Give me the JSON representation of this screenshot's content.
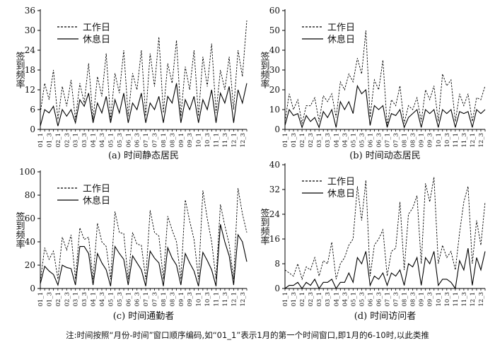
{
  "figure": {
    "note": "注:时间按照“月份-时间”窗口顺序编码,如“01_1”表示1月的第一个时间窗口,即1月的6-10时,以此类推"
  },
  "chart_data": [
    {
      "type": "line",
      "title": "(a) 时间静态居民",
      "ylabel": "签到频率",
      "xlabel": "",
      "ylim": [
        0,
        36
      ],
      "yticks": [
        0,
        6,
        12,
        18,
        24,
        30,
        36
      ],
      "x": [
        "01_1",
        "01_2",
        "01_3",
        "01_4",
        "02_1",
        "02_2",
        "02_3",
        "02_4",
        "03_1",
        "03_2",
        "03_3",
        "03_4",
        "04_1",
        "04_2",
        "04_3",
        "04_4",
        "05_1",
        "05_2",
        "05_3",
        "05_4",
        "06_1",
        "06_2",
        "06_3",
        "06_4",
        "07_1",
        "07_2",
        "07_3",
        "07_4",
        "08_1",
        "08_2",
        "08_3",
        "08_4",
        "09_1",
        "09_2",
        "09_3",
        "09_4",
        "10_1",
        "10_2",
        "10_3",
        "10_4",
        "11_1",
        "11_2",
        "11_3",
        "11_4",
        "12_1",
        "12_2",
        "12_3",
        "12_4"
      ],
      "xtick_labels": [
        "01_1",
        "01_3",
        "02_1",
        "02_3",
        "03_1",
        "03_3",
        "04_1",
        "04_3",
        "05_1",
        "05_3",
        "06_1",
        "06_3",
        "07_1",
        "07_3",
        "08_1",
        "08_3",
        "09_1",
        "09_3",
        "10_1",
        "10_3",
        "11_1",
        "11_3",
        "12_1",
        "12_3"
      ],
      "legend": "top-left",
      "series": [
        {
          "name": "工作日",
          "style": "dashed",
          "values": [
            5,
            14,
            9,
            18,
            3,
            13,
            7,
            15,
            3,
            14,
            8,
            20,
            3,
            16,
            10,
            23,
            3,
            17,
            11,
            24,
            4,
            17,
            12,
            24,
            4,
            23,
            13,
            28,
            5,
            20,
            14,
            27,
            4,
            19,
            12,
            24,
            4,
            22,
            13,
            26,
            5,
            18,
            12,
            22,
            6,
            24,
            16,
            33
          ]
        },
        {
          "name": "休息日",
          "style": "solid",
          "values": [
            1,
            6,
            5,
            7,
            1,
            6,
            4,
            6,
            2,
            9,
            7,
            11,
            2,
            8,
            5,
            10,
            2,
            9,
            5,
            11,
            2,
            8,
            6,
            11,
            2,
            8,
            6,
            10,
            2,
            10,
            8,
            14,
            2,
            9,
            6,
            10,
            2,
            9,
            6,
            12,
            2,
            11,
            8,
            13,
            2,
            12,
            8,
            14
          ]
        }
      ]
    },
    {
      "type": "line",
      "title": "(b) 时间动态居民",
      "ylabel": "签到频率",
      "xlabel": "",
      "ylim": [
        0,
        60
      ],
      "yticks": [
        0,
        10,
        20,
        30,
        40,
        50,
        60
      ],
      "x": [
        "01_1",
        "01_2",
        "01_3",
        "01_4",
        "02_1",
        "02_2",
        "02_3",
        "02_4",
        "03_1",
        "03_2",
        "03_3",
        "03_4",
        "04_1",
        "04_2",
        "04_3",
        "04_4",
        "05_1",
        "05_2",
        "05_3",
        "05_4",
        "06_1",
        "06_2",
        "06_3",
        "06_4",
        "07_1",
        "07_2",
        "07_3",
        "07_4",
        "08_1",
        "08_2",
        "08_3",
        "08_4",
        "09_1",
        "09_2",
        "09_3",
        "09_4",
        "10_1",
        "10_2",
        "10_3",
        "10_4",
        "11_1",
        "11_2",
        "11_3",
        "11_4",
        "12_1",
        "12_2",
        "12_3",
        "12_4"
      ],
      "xtick_labels": [
        "01_1",
        "01_3",
        "02_1",
        "02_3",
        "03_1",
        "03_3",
        "04_1",
        "04_3",
        "05_1",
        "05_3",
        "06_1",
        "06_3",
        "07_1",
        "07_3",
        "08_1",
        "08_3",
        "09_1",
        "09_3",
        "10_1",
        "10_3",
        "11_1",
        "11_3",
        "12_1",
        "12_3"
      ],
      "legend": "top-left",
      "series": [
        {
          "name": "工作日",
          "style": "dashed",
          "values": [
            4,
            18,
            10,
            15,
            3,
            12,
            12,
            16,
            4,
            17,
            14,
            18,
            6,
            24,
            20,
            28,
            24,
            36,
            28,
            50,
            6,
            25,
            20,
            35,
            2,
            15,
            12,
            22,
            3,
            12,
            10,
            16,
            4,
            20,
            15,
            22,
            4,
            28,
            22,
            25,
            4,
            18,
            12,
            18,
            4,
            16,
            15,
            22
          ]
        },
        {
          "name": "休息日",
          "style": "solid",
          "values": [
            2,
            10,
            7,
            8,
            1,
            7,
            4,
            6,
            1,
            9,
            6,
            10,
            1,
            14,
            10,
            14,
            8,
            22,
            18,
            20,
            2,
            12,
            10,
            12,
            1,
            8,
            7,
            10,
            1,
            6,
            8,
            10,
            1,
            10,
            8,
            10,
            1,
            10,
            8,
            10,
            1,
            9,
            8,
            9,
            1,
            10,
            8,
            10
          ]
        }
      ]
    },
    {
      "type": "line",
      "title": "(c) 时间通勤者",
      "ylabel": "签到频率",
      "xlabel": "",
      "ylim": [
        0,
        100
      ],
      "yticks": [
        0,
        20,
        40,
        60,
        80,
        100
      ],
      "x": [
        "01_1",
        "01_2",
        "01_3",
        "01_4",
        "02_1",
        "02_2",
        "02_3",
        "02_4",
        "03_1",
        "03_2",
        "03_3",
        "03_4",
        "04_1",
        "04_2",
        "04_3",
        "04_4",
        "05_1",
        "05_2",
        "05_3",
        "05_4",
        "06_1",
        "06_2",
        "06_3",
        "06_4",
        "07_1",
        "07_2",
        "07_3",
        "07_4",
        "08_1",
        "08_2",
        "08_3",
        "08_4",
        "09_1",
        "09_2",
        "09_3",
        "09_4",
        "10_1",
        "10_2",
        "10_3",
        "10_4",
        "11_1",
        "11_2",
        "11_3",
        "11_4",
        "12_1",
        "12_2",
        "12_3",
        "12_4"
      ],
      "xtick_labels": [
        "01_1",
        "01_3",
        "02_1",
        "02_3",
        "03_1",
        "03_3",
        "04_1",
        "04_3",
        "05_1",
        "05_3",
        "06_1",
        "06_3",
        "07_1",
        "07_3",
        "08_1",
        "08_3",
        "09_1",
        "09_3",
        "10_1",
        "10_3",
        "11_1",
        "11_3",
        "12_1",
        "12_3"
      ],
      "legend": "top-left",
      "series": [
        {
          "name": "工作日",
          "style": "dashed",
          "values": [
            6,
            35,
            25,
            32,
            8,
            44,
            33,
            46,
            8,
            52,
            42,
            44,
            8,
            56,
            40,
            36,
            8,
            66,
            48,
            47,
            8,
            48,
            38,
            37,
            8,
            67,
            48,
            45,
            8,
            62,
            50,
            40,
            8,
            76,
            58,
            42,
            8,
            84,
            60,
            40,
            8,
            72,
            54,
            38,
            8,
            86,
            64,
            48
          ]
        },
        {
          "name": "休息日",
          "style": "solid",
          "values": [
            4,
            19,
            15,
            12,
            3,
            20,
            18,
            17,
            3,
            36,
            36,
            30,
            3,
            30,
            22,
            16,
            2,
            36,
            30,
            25,
            3,
            28,
            22,
            16,
            2,
            32,
            26,
            22,
            2,
            35,
            26,
            20,
            3,
            30,
            22,
            15,
            2,
            31,
            24,
            16,
            2,
            55,
            40,
            28,
            3,
            46,
            40,
            23
          ]
        }
      ]
    },
    {
      "type": "line",
      "title": "(d) 时间访问者",
      "ylabel": "签到频率",
      "xlabel": "",
      "ylim": [
        0,
        40
      ],
      "yticks": [
        0,
        8,
        16,
        24,
        32,
        40
      ],
      "x": [
        "01_1",
        "01_2",
        "01_3",
        "01_4",
        "02_1",
        "02_2",
        "02_3",
        "02_4",
        "03_1",
        "03_2",
        "03_3",
        "03_4",
        "04_1",
        "04_2",
        "04_3",
        "04_4",
        "05_1",
        "05_2",
        "05_3",
        "05_4",
        "06_1",
        "06_2",
        "06_3",
        "06_4",
        "07_1",
        "07_2",
        "07_3",
        "07_4",
        "08_1",
        "08_2",
        "08_3",
        "08_4",
        "09_1",
        "09_2",
        "09_3",
        "09_4",
        "10_1",
        "10_2",
        "10_3",
        "10_4",
        "11_1",
        "11_2",
        "11_3",
        "11_4",
        "12_1",
        "12_2",
        "12_3",
        "12_4"
      ],
      "xtick_labels": [
        "01_1",
        "01_3",
        "02_1",
        "02_3",
        "03_1",
        "03_3",
        "04_1",
        "04_3",
        "05_1",
        "05_3",
        "06_1",
        "06_3",
        "07_1",
        "07_3",
        "08_1",
        "08_3",
        "09_1",
        "09_3",
        "10_1",
        "10_3",
        "11_1",
        "11_3",
        "12_1",
        "12_3"
      ],
      "legend": "top-left",
      "series": [
        {
          "name": "工作日",
          "style": "dashed",
          "values": [
            6,
            5,
            4,
            8,
            3,
            7,
            6,
            10,
            4,
            9,
            8,
            15,
            3,
            8,
            10,
            14,
            16,
            33,
            22,
            35,
            4,
            14,
            16,
            19,
            4,
            12,
            13,
            28,
            6,
            24,
            26,
            30,
            8,
            34,
            28,
            36,
            8,
            14,
            10,
            12,
            6,
            18,
            28,
            33,
            8,
            22,
            14,
            28
          ]
        },
        {
          "name": "休息日",
          "style": "solid",
          "values": [
            0,
            1,
            1,
            2,
            0,
            2,
            1,
            3,
            0,
            2,
            2,
            3,
            0,
            2,
            2,
            5,
            2,
            10,
            8,
            12,
            1,
            4,
            3,
            5,
            1,
            5,
            4,
            6,
            1,
            8,
            7,
            10,
            1,
            10,
            8,
            12,
            1,
            3,
            3,
            2,
            0,
            9,
            6,
            13,
            1,
            10,
            6,
            12
          ]
        }
      ]
    }
  ]
}
